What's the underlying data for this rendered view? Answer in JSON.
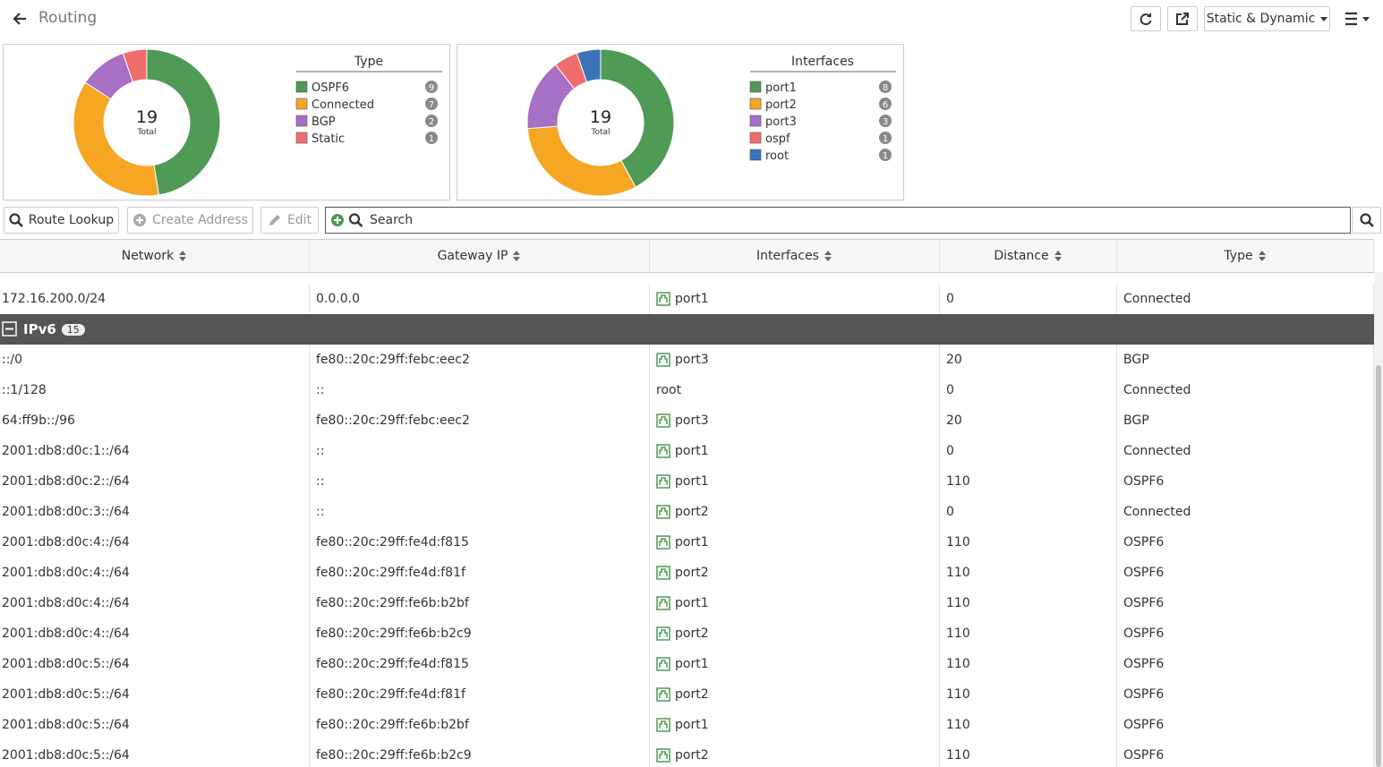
{
  "header": {
    "title": "Routing",
    "filter": "Static & Dynamic"
  },
  "charts": [
    {
      "type": "donut",
      "title": "Type",
      "total": 19,
      "total_label": "Total",
      "series": [
        {
          "name": "OSPF6",
          "color": "#4f9a55",
          "value": 9
        },
        {
          "name": "Connected",
          "color": "#f5a623",
          "value": 7
        },
        {
          "name": "BGP",
          "color": "#a86fc6",
          "value": 2
        },
        {
          "name": "Static",
          "color": "#f06d6d",
          "value": 1
        }
      ]
    },
    {
      "type": "donut",
      "title": "Interfaces",
      "total": 19,
      "total_label": "Total",
      "series": [
        {
          "name": "port1",
          "color": "#4f9a55",
          "value": 8
        },
        {
          "name": "port2",
          "color": "#f5a623",
          "value": 6
        },
        {
          "name": "port3",
          "color": "#a86fc6",
          "value": 3
        },
        {
          "name": "ospf",
          "color": "#f06d6d",
          "value": 1
        },
        {
          "name": "root",
          "color": "#3b73b9",
          "value": 1
        }
      ]
    }
  ],
  "toolbar": {
    "route_lookup": "Route Lookup",
    "create_address": "Create Address",
    "edit": "Edit",
    "search": "Search"
  },
  "table": {
    "columns": [
      "Network",
      "Gateway IP",
      "Interfaces",
      "Distance",
      "Type"
    ],
    "rows": [
      {
        "network": "172.16.200.0/24",
        "gateway": "0.0.0.0",
        "interface": "port1",
        "icon": true,
        "distance": 0,
        "type": "Connected"
      }
    ],
    "group": {
      "label": "IPv6",
      "count": 15
    },
    "group_rows": [
      {
        "network": "::/0",
        "gateway": "fe80::20c:29ff:febc:eec2",
        "interface": "port3",
        "icon": true,
        "distance": 20,
        "type": "BGP"
      },
      {
        "network": "::1/128",
        "gateway": "::",
        "interface": "root",
        "icon": false,
        "distance": 0,
        "type": "Connected"
      },
      {
        "network": "64:ff9b::/96",
        "gateway": "fe80::20c:29ff:febc:eec2",
        "interface": "port3",
        "icon": true,
        "distance": 20,
        "type": "BGP"
      },
      {
        "network": "2001:db8:d0c:1::/64",
        "gateway": "::",
        "interface": "port1",
        "icon": true,
        "distance": 0,
        "type": "Connected"
      },
      {
        "network": "2001:db8:d0c:2::/64",
        "gateway": "::",
        "interface": "port1",
        "icon": true,
        "distance": 110,
        "type": "OSPF6"
      },
      {
        "network": "2001:db8:d0c:3::/64",
        "gateway": "::",
        "interface": "port2",
        "icon": true,
        "distance": 0,
        "type": "Connected"
      },
      {
        "network": "2001:db8:d0c:4::/64",
        "gateway": "fe80::20c:29ff:fe4d:f815",
        "interface": "port1",
        "icon": true,
        "distance": 110,
        "type": "OSPF6"
      },
      {
        "network": "2001:db8:d0c:4::/64",
        "gateway": "fe80::20c:29ff:fe4d:f81f",
        "interface": "port2",
        "icon": true,
        "distance": 110,
        "type": "OSPF6"
      },
      {
        "network": "2001:db8:d0c:4::/64",
        "gateway": "fe80::20c:29ff:fe6b:b2bf",
        "interface": "port1",
        "icon": true,
        "distance": 110,
        "type": "OSPF6"
      },
      {
        "network": "2001:db8:d0c:4::/64",
        "gateway": "fe80::20c:29ff:fe6b:b2c9",
        "interface": "port2",
        "icon": true,
        "distance": 110,
        "type": "OSPF6"
      },
      {
        "network": "2001:db8:d0c:5::/64",
        "gateway": "fe80::20c:29ff:fe4d:f815",
        "interface": "port1",
        "icon": true,
        "distance": 110,
        "type": "OSPF6"
      },
      {
        "network": "2001:db8:d0c:5::/64",
        "gateway": "fe80::20c:29ff:fe4d:f81f",
        "interface": "port2",
        "icon": true,
        "distance": 110,
        "type": "OSPF6"
      },
      {
        "network": "2001:db8:d0c:5::/64",
        "gateway": "fe80::20c:29ff:fe6b:b2bf",
        "interface": "port1",
        "icon": true,
        "distance": 110,
        "type": "OSPF6"
      },
      {
        "network": "2001:db8:d0c:5::/64",
        "gateway": "fe80::20c:29ff:fe6b:b2c9",
        "interface": "port2",
        "icon": true,
        "distance": 110,
        "type": "OSPF6"
      }
    ]
  }
}
